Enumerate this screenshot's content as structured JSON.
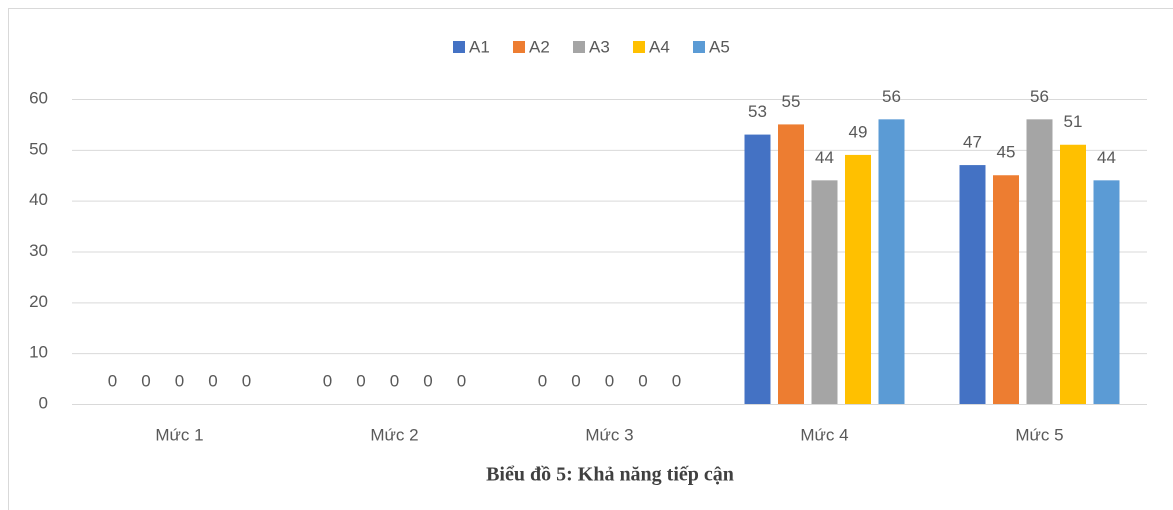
{
  "chart_data": {
    "type": "bar",
    "title": "Biểu đồ 5: Khả năng tiếp cận",
    "categories": [
      "Mức 1",
      "Mức 2",
      "Mức 3",
      "Mức 4",
      "Mức 5"
    ],
    "series": [
      {
        "name": "A1",
        "color": "#4472c4",
        "values": [
          0,
          0,
          0,
          53,
          47
        ]
      },
      {
        "name": "A2",
        "color": "#ed7d31",
        "values": [
          0,
          0,
          0,
          55,
          45
        ]
      },
      {
        "name": "A3",
        "color": "#a5a5a5",
        "values": [
          0,
          0,
          0,
          44,
          56
        ]
      },
      {
        "name": "A4",
        "color": "#ffc000",
        "values": [
          0,
          0,
          0,
          49,
          51
        ]
      },
      {
        "name": "A5",
        "color": "#5b9bd5",
        "values": [
          0,
          0,
          0,
          56,
          44
        ]
      }
    ],
    "ylim": [
      0,
      60
    ],
    "yticks": [
      0,
      10,
      20,
      30,
      40,
      50,
      60
    ],
    "grid": true,
    "legend": "top"
  }
}
